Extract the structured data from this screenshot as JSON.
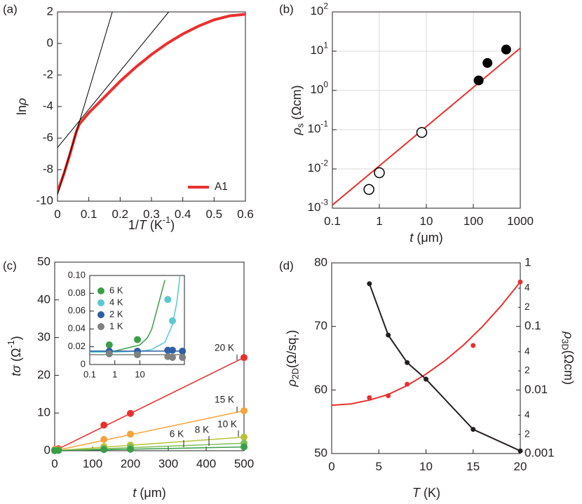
{
  "chart_data": [
    {
      "type": "line",
      "panel_label": "(a)",
      "xlabel": [
        {
          "text": "1/"
        },
        {
          "text": "T",
          "style": "italic"
        },
        {
          "text": " (K"
        },
        {
          "text": "-1",
          "style": "sup"
        },
        {
          "text": ")"
        }
      ],
      "ylabel": [
        {
          "text": "ln"
        },
        {
          "text": "ρ",
          "style": "italic"
        }
      ],
      "xlim": [
        0,
        0.6
      ],
      "ylim": [
        -10,
        2
      ],
      "xticks": [
        0,
        0.1,
        0.2,
        0.3,
        0.4,
        0.5,
        0.6
      ],
      "yticks": [
        -10,
        -8,
        -6,
        -4,
        -2,
        0,
        2
      ],
      "legend": "lower right",
      "series": [
        {
          "name": "A1",
          "color": "#e8312f",
          "line": true,
          "width": 4,
          "x": [
            0,
            0.02,
            0.04,
            0.06,
            0.07,
            0.1,
            0.15,
            0.2,
            0.25,
            0.3,
            0.35,
            0.4,
            0.45,
            0.5,
            0.55,
            0.6
          ],
          "values": [
            -9.4,
            -8.3,
            -7.0,
            -5.6,
            -5.1,
            -4.4,
            -3.4,
            -2.4,
            -1.5,
            -0.7,
            0.0,
            0.6,
            1.1,
            1.5,
            1.75,
            1.85
          ]
        },
        {
          "color": "#000000",
          "line": true,
          "width": 1,
          "x": [
            0,
            0.175
          ],
          "values": [
            -9.6,
            2
          ]
        },
        {
          "color": "#000000",
          "line": true,
          "width": 1,
          "x": [
            0,
            0.355
          ],
          "values": [
            -6.6,
            2
          ]
        }
      ]
    },
    {
      "type": "scatter",
      "panel_label": "(b)",
      "xlabel": [
        {
          "text": "t",
          "style": "italic"
        },
        {
          "text": " (μm)"
        }
      ],
      "ylabel": [
        {
          "text": "ρ",
          "style": "italic"
        },
        {
          "text": "s",
          "style": "sub"
        },
        {
          "text": " (Ωcm)"
        }
      ],
      "xscale": "log",
      "yscale": "log",
      "grid": true,
      "xlim": [
        0.1,
        1000
      ],
      "ylim": [
        0.001,
        100
      ],
      "xticks": [
        0.1,
        1,
        10,
        100,
        1000
      ],
      "yticks": [
        {
          "value": 0.001,
          "label": "10",
          "exponent": "-3"
        },
        {
          "value": 0.01,
          "label": "10",
          "exponent": "-2"
        },
        {
          "value": 0.1,
          "label": "10",
          "exponent": "-1"
        },
        {
          "value": 1,
          "label": "10",
          "exponent": "0"
        },
        {
          "value": 10,
          "label": "10",
          "exponent": "1"
        },
        {
          "value": 100,
          "label": "10",
          "exponent": "2"
        }
      ],
      "series": [
        {
          "color": "#e8312f",
          "line": true,
          "width": 2,
          "x": [
            0.1,
            1000
          ],
          "values": [
            0.0012,
            12
          ]
        },
        {
          "color": "#000000",
          "marker": "open",
          "x": [
            0.6,
            1,
            8
          ],
          "values": [
            0.003,
            0.008,
            0.085
          ]
        },
        {
          "color": "#000000",
          "marker": "filled",
          "x": [
            130,
            200,
            500
          ],
          "values": [
            1.8,
            5,
            11
          ]
        }
      ]
    },
    {
      "type": "scatter",
      "panel_label": "(c)",
      "xlabel": [
        {
          "text": "t",
          "style": "italic"
        },
        {
          "text": " (μm)"
        }
      ],
      "ylabel": [
        {
          "text": "tσ",
          "style": "italic"
        },
        {
          "text": " (Ω"
        },
        {
          "text": "-1",
          "style": "sup"
        },
        {
          "text": ")"
        }
      ],
      "xlim": [
        0,
        500
      ],
      "ylim": [
        0,
        50
      ],
      "xticks": [
        0,
        100,
        200,
        300,
        400,
        500
      ],
      "yticks": [
        0,
        10,
        20,
        30,
        40,
        50
      ],
      "legend": "line labels",
      "x": [
        0,
        10,
        130,
        200,
        500
      ],
      "fit_x": [
        0,
        500
      ],
      "series": [
        {
          "name": "20 K",
          "color": "#e8312f",
          "marker": "filled",
          "values": [
            0.3,
            0.5,
            6.8,
            9.9,
            24.7
          ],
          "fit": [
            0,
            24.7
          ]
        },
        {
          "name": "15 K",
          "color": "#f5a33c",
          "marker": "filled",
          "values": [
            0.2,
            0.3,
            3.0,
            4.4,
            10.6
          ],
          "fit": [
            0,
            10.6
          ]
        },
        {
          "name": "10 K",
          "color": "#b9c23a",
          "marker": "filled",
          "values": [
            0.1,
            0.2,
            1.1,
            1.5,
            3.6
          ],
          "fit": [
            0,
            3.6
          ]
        },
        {
          "name": "8 K",
          "color": "#7dbf56",
          "marker": "filled",
          "values": [
            0.1,
            0.1,
            0.6,
            0.9,
            2.0
          ],
          "fit": [
            0,
            2.0
          ]
        },
        {
          "name": "6 K",
          "color": "#3a9e48",
          "marker": "filled",
          "values": [
            0.0,
            0.1,
            0.3,
            0.4,
            1.0
          ],
          "fit": [
            0,
            1.0
          ]
        }
      ],
      "inset": {
        "xscale": "log",
        "xlim": [
          0.1,
          600
        ],
        "ylim": [
          0,
          0.1
        ],
        "xticks": [
          0.1,
          1,
          10
        ],
        "yticks": [
          0,
          0.02,
          0.04,
          0.06,
          0.08,
          {
            "value": 0.1,
            "label": "0.10"
          }
        ],
        "legend": "upper left",
        "x": [
          0.6,
          8,
          130,
          200,
          500
        ],
        "fit_x": [
          0.1,
          1,
          10,
          20,
          30,
          100,
          200,
          300,
          400,
          500
        ],
        "series": [
          {
            "name": "6 K",
            "color": "#3a9e48",
            "marker": "filled",
            "values": [
              0.022,
              0.028,
              null,
              null,
              null
            ],
            "fit": [
              0.015,
              0.015,
              0.022,
              0.03,
              0.04,
              0.095,
              null,
              null,
              null,
              null
            ]
          },
          {
            "name": "4 K",
            "color": "#5bc8d0",
            "marker": "filled",
            "values": [
              0.012,
              0.013,
              0.073,
              0.049,
              null
            ],
            "fit": [
              0.014,
              0.014,
              0.015,
              0.016,
              0.017,
              0.025,
              0.045,
              0.07,
              0.1,
              null
            ]
          },
          {
            "name": "2 K",
            "color": "#2f5fa8",
            "marker": "filled",
            "values": [
              0.015,
              0.015,
              0.016,
              0.016,
              0.015
            ],
            "fit": [
              0.015,
              0.015,
              0.015,
              0.015,
              0.015,
              0.015,
              0.015,
              0.015,
              0.015,
              0.015
            ]
          },
          {
            "name": "1 K",
            "color": "#808080",
            "marker": "filled",
            "values": [
              0.012,
              0.011,
              0.009,
              0.008,
              0.008
            ],
            "fit": [
              0.011,
              0.011,
              0.011,
              0.011,
              0.011,
              0.011,
              0.011,
              0.011,
              0.011,
              0.011
            ]
          }
        ]
      }
    },
    {
      "type": "line",
      "panel_label": "(d)",
      "xlabel": [
        {
          "text": "T",
          "style": "italic"
        },
        {
          "text": " (K)"
        }
      ],
      "ylabel": [
        {
          "text": "ρ",
          "style": "italic"
        },
        {
          "text": "2D",
          "style": "sub"
        },
        {
          "text": "(Ω/sq.)"
        }
      ],
      "y2label": [
        {
          "text": "ρ",
          "style": "italic"
        },
        {
          "text": "3D",
          "style": "sub"
        },
        {
          "text": "(Ωcm)"
        }
      ],
      "xlim": [
        0,
        20
      ],
      "ylim": [
        50,
        80
      ],
      "y2scale": "log",
      "y2lim": [
        0.001,
        1
      ],
      "xticks": [
        0,
        5,
        10,
        15,
        20
      ],
      "yticks": [
        50,
        60,
        70,
        80
      ],
      "y2ticks": [
        0.001,
        {
          "value": 0.002,
          "label": "2"
        },
        {
          "value": 0.004,
          "label": "4"
        },
        0.01,
        {
          "value": 0.02,
          "label": "2"
        },
        {
          "value": 0.04,
          "label": "4"
        },
        0.1,
        {
          "value": 0.2,
          "label": "2"
        },
        {
          "value": 0.4,
          "label": "4"
        },
        1
      ],
      "x": [
        4,
        6,
        8,
        10,
        15,
        20
      ],
      "fit_x": [
        0,
        2,
        4,
        6,
        8,
        10,
        12,
        14,
        16,
        18,
        20
      ],
      "series": [
        {
          "color": "#e8312f",
          "marker": "filled",
          "line": false,
          "width": 2,
          "values": [
            58.8,
            59.1,
            60.9,
            61.7,
            67.0,
            77.0
          ],
          "fit": [
            57.6,
            57.8,
            58.4,
            59.3,
            60.7,
            62.5,
            64.6,
            67.1,
            70.0,
            73.3,
            77.0
          ]
        },
        {
          "color": "#231f20",
          "marker": "filled",
          "line": true,
          "width": 2,
          "axis": "y2",
          "values": [
            0.47,
            0.073,
            0.027,
            0.0148,
            0.0024,
            0.0011
          ]
        }
      ]
    }
  ]
}
